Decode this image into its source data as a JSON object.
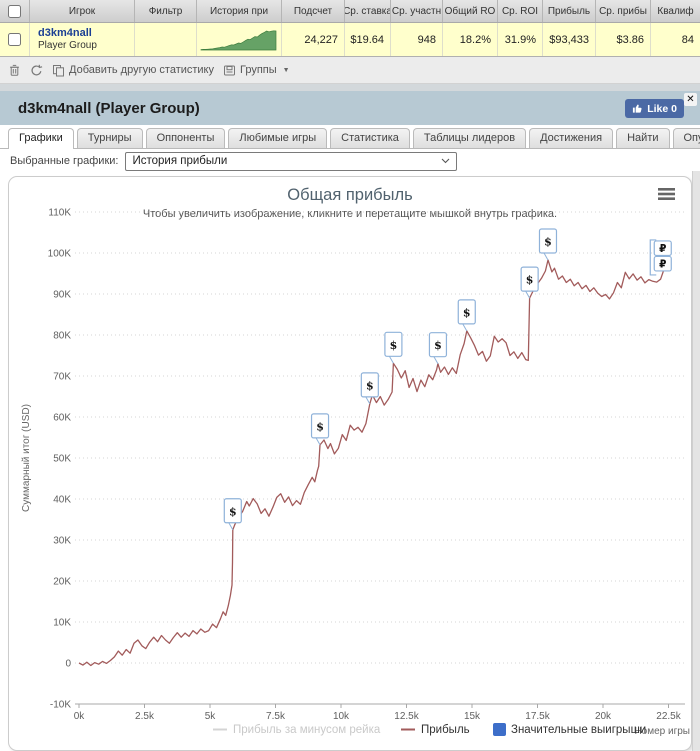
{
  "table": {
    "headers": [
      "Игрок",
      "Фильтр",
      "История при",
      "Подсчет",
      "Ср. ставка",
      "Ср. участн",
      "Общий RO",
      "Ср. ROI",
      "Прибыль",
      "Ср. прибы",
      "Квалиф"
    ],
    "row": {
      "player": "d3km4nall",
      "player_type": "Player Group",
      "filter": "",
      "count": "24,227",
      "avg_stake": "$19.64",
      "avg_entrants": "948",
      "total_roi": "18.2%",
      "avg_roi": "31.9%",
      "profit": "$93,433",
      "avg_profit": "$3.86",
      "qualified": "84",
      "sparkline": [
        2,
        3,
        3,
        4,
        5,
        6,
        8,
        10,
        12,
        15,
        14,
        18,
        22,
        26,
        25,
        30,
        35,
        33,
        40,
        47,
        54,
        52,
        60,
        67,
        65,
        74,
        82,
        88,
        95,
        91,
        94,
        96,
        95
      ]
    }
  },
  "toolbar": {
    "add_stat_label": "Добавить другую статистику",
    "groups_label": "Группы",
    "caret": "▼"
  },
  "panel": {
    "title": "d3km4nall (Player Group)",
    "like_label": "Like 0",
    "close_label": "✕"
  },
  "tabs": {
    "items": [
      {
        "label": "Графики",
        "active": true
      },
      {
        "label": "Турниры",
        "active": false
      },
      {
        "label": "Оппоненты",
        "active": false
      },
      {
        "label": "Любимые игры",
        "active": false
      },
      {
        "label": "Статистика",
        "active": false
      },
      {
        "label": "Таблицы лидеров",
        "active": false
      },
      {
        "label": "Достижения",
        "active": false
      },
      {
        "label": "Найти",
        "active": false
      },
      {
        "label": "Опубликовать",
        "active": false
      }
    ]
  },
  "controls": {
    "label": "Выбранные графики:",
    "selected": "История прибыли"
  },
  "colors": {
    "row_highlight": "#ffffcc",
    "panel_header": "#b7c9d3",
    "like_button": "#4b69a5",
    "profit_line": "#a25b5b",
    "marker_border": "#8fb2d9",
    "legend_blue": "#3d6ec9",
    "sparkline_green": "#66a266",
    "player_link": "#1b3f94"
  },
  "chart_data": {
    "type": "line",
    "title": "Общая прибыль",
    "subtitle": "Чтобы увеличить изображение, кликните и перетащите мышкой внутрь графика.",
    "ylabel": "Суммарный итог (USD)",
    "xlabel": "Номер игры",
    "xlim": [
      0,
      23300
    ],
    "ylim": [
      -10000,
      110000
    ],
    "x_ticks": [
      0,
      2500,
      5000,
      7500,
      10000,
      12500,
      15000,
      17500,
      20000,
      22500
    ],
    "y_ticks": [
      -10000,
      0,
      10000,
      20000,
      30000,
      40000,
      50000,
      60000,
      70000,
      80000,
      90000,
      100000,
      110000
    ],
    "grid": "dotted-horizontal",
    "legend": [
      {
        "label": "Прибыль за минусом рейка",
        "color": "#d4d4d4",
        "text_color": "#c9c9c9",
        "disabled": true,
        "type": "line"
      },
      {
        "label": "Прибыль",
        "color": "#a25b5b",
        "text_color": "#333333",
        "disabled": false,
        "type": "line"
      },
      {
        "label": "Значительные выигрыши",
        "color": "#3d6ec9",
        "text_color": "#333333",
        "disabled": false,
        "type": "square"
      }
    ],
    "series": [
      {
        "name": "Прибыль",
        "color": "#a25b5b",
        "points": [
          [
            0,
            0
          ],
          [
            150,
            -500
          ],
          [
            300,
            200
          ],
          [
            450,
            -600
          ],
          [
            600,
            100
          ],
          [
            750,
            -300
          ],
          [
            900,
            400
          ],
          [
            1050,
            -100
          ],
          [
            1200,
            600
          ],
          [
            1350,
            1500
          ],
          [
            1500,
            2900
          ],
          [
            1650,
            1900
          ],
          [
            1800,
            3300
          ],
          [
            1950,
            2400
          ],
          [
            2100,
            4800
          ],
          [
            2250,
            5600
          ],
          [
            2400,
            4200
          ],
          [
            2550,
            3500
          ],
          [
            2700,
            5100
          ],
          [
            2850,
            6300
          ],
          [
            3000,
            5200
          ],
          [
            3150,
            6700
          ],
          [
            3300,
            5600
          ],
          [
            3450,
            4800
          ],
          [
            3600,
            6200
          ],
          [
            3750,
            7400
          ],
          [
            3900,
            6300
          ],
          [
            4050,
            7300
          ],
          [
            4200,
            6500
          ],
          [
            4350,
            7900
          ],
          [
            4500,
            7100
          ],
          [
            4650,
            8300
          ],
          [
            4800,
            7500
          ],
          [
            4950,
            7900
          ],
          [
            5100,
            9500
          ],
          [
            5250,
            8600
          ],
          [
            5400,
            10800
          ],
          [
            5500,
            12500
          ],
          [
            5600,
            11600
          ],
          [
            5700,
            14000
          ],
          [
            5780,
            16500
          ],
          [
            5840,
            19000
          ],
          [
            5860,
            24500
          ],
          [
            5870,
            32500
          ],
          [
            5950,
            33800
          ],
          [
            6100,
            35600
          ],
          [
            6250,
            37000
          ],
          [
            6400,
            39400
          ],
          [
            6500,
            38300
          ],
          [
            6650,
            40100
          ],
          [
            6800,
            38800
          ],
          [
            6950,
            36500
          ],
          [
            7100,
            37600
          ],
          [
            7250,
            35800
          ],
          [
            7400,
            38000
          ],
          [
            7550,
            40400
          ],
          [
            7700,
            41300
          ],
          [
            7850,
            39200
          ],
          [
            8000,
            40500
          ],
          [
            8150,
            38400
          ],
          [
            8300,
            39600
          ],
          [
            8450,
            38700
          ],
          [
            8600,
            41600
          ],
          [
            8750,
            43500
          ],
          [
            8900,
            45300
          ],
          [
            9000,
            44200
          ],
          [
            9100,
            46900
          ],
          [
            9150,
            48000
          ],
          [
            9200,
            53200
          ],
          [
            9350,
            54400
          ],
          [
            9500,
            52300
          ],
          [
            9600,
            53500
          ],
          [
            9750,
            51000
          ],
          [
            9900,
            52400
          ],
          [
            10050,
            55700
          ],
          [
            10200,
            54300
          ],
          [
            10350,
            58000
          ],
          [
            10500,
            56800
          ],
          [
            10650,
            57500
          ],
          [
            10800,
            56300
          ],
          [
            10950,
            58400
          ],
          [
            11100,
            63200
          ],
          [
            11200,
            65400
          ],
          [
            11350,
            63500
          ],
          [
            11500,
            65000
          ],
          [
            11650,
            62900
          ],
          [
            11800,
            64300
          ],
          [
            11950,
            66100
          ],
          [
            12000,
            73100
          ],
          [
            12150,
            71600
          ],
          [
            12300,
            69500
          ],
          [
            12450,
            71300
          ],
          [
            12600,
            67200
          ],
          [
            12750,
            69400
          ],
          [
            12900,
            66200
          ],
          [
            13050,
            69000
          ],
          [
            13200,
            67400
          ],
          [
            13350,
            70300
          ],
          [
            13500,
            69100
          ],
          [
            13650,
            71500
          ],
          [
            13700,
            73000
          ],
          [
            13800,
            70900
          ],
          [
            13950,
            72200
          ],
          [
            14100,
            70400
          ],
          [
            14250,
            72000
          ],
          [
            14400,
            70600
          ],
          [
            14550,
            75200
          ],
          [
            14700,
            77900
          ],
          [
            14800,
            81000
          ],
          [
            14950,
            79300
          ],
          [
            15100,
            77400
          ],
          [
            15250,
            75100
          ],
          [
            15400,
            76000
          ],
          [
            15550,
            73600
          ],
          [
            15700,
            74900
          ],
          [
            15850,
            79700
          ],
          [
            16000,
            78300
          ],
          [
            16150,
            79100
          ],
          [
            16300,
            78100
          ],
          [
            16450,
            75000
          ],
          [
            16600,
            75900
          ],
          [
            16750,
            74300
          ],
          [
            16900,
            75700
          ],
          [
            17050,
            74000
          ],
          [
            17150,
            73800
          ],
          [
            17200,
            89000
          ],
          [
            17350,
            91000
          ],
          [
            17500,
            92500
          ],
          [
            17650,
            93800
          ],
          [
            17800,
            95600
          ],
          [
            17900,
            98300
          ],
          [
            18050,
            95400
          ],
          [
            18150,
            96300
          ],
          [
            18300,
            93600
          ],
          [
            18450,
            94400
          ],
          [
            18600,
            92800
          ],
          [
            18750,
            93600
          ],
          [
            18900,
            92000
          ],
          [
            19050,
            92800
          ],
          [
            19200,
            91300
          ],
          [
            19350,
            92100
          ],
          [
            19500,
            90600
          ],
          [
            19650,
            91500
          ],
          [
            19800,
            90200
          ],
          [
            19950,
            89400
          ],
          [
            20100,
            89900
          ],
          [
            20250,
            88800
          ],
          [
            20400,
            90300
          ],
          [
            20550,
            92800
          ],
          [
            20700,
            91500
          ],
          [
            20850,
            95300
          ],
          [
            21000,
            93700
          ],
          [
            21150,
            94900
          ],
          [
            21300,
            93400
          ],
          [
            21450,
            94200
          ],
          [
            21600,
            92700
          ],
          [
            21750,
            93500
          ],
          [
            21900,
            93100
          ],
          [
            22050,
            92900
          ],
          [
            22200,
            93600
          ],
          [
            22300,
            95500
          ]
        ]
      }
    ],
    "win_markers": {
      "symbol": "$",
      "points": [
        [
          5870,
          32500
        ],
        [
          9200,
          53200
        ],
        [
          11100,
          63200
        ],
        [
          12000,
          73100
        ],
        [
          13700,
          73000
        ],
        [
          14800,
          81000
        ],
        [
          17200,
          89000
        ],
        [
          17900,
          98300
        ]
      ]
    },
    "end_markers": {
      "symbol": "₽",
      "count": 2,
      "x": 22300,
      "y": 95500
    }
  }
}
